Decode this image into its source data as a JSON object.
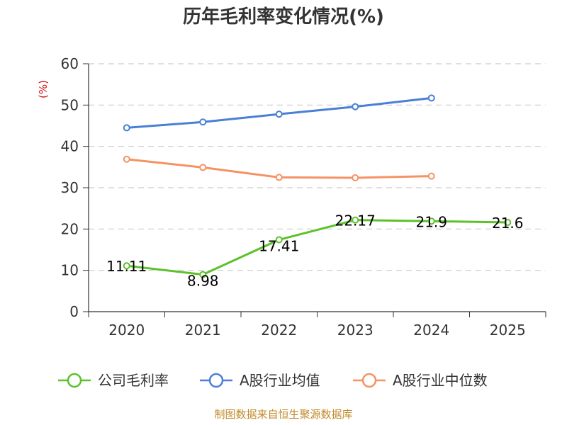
{
  "chart_data": {
    "type": "line",
    "title": "历年毛利率变化情况(%)",
    "y_unit": "(%)",
    "categories": [
      "2020",
      "2021",
      "2022",
      "2023",
      "2024",
      "2025"
    ],
    "ylim": [
      0,
      60
    ],
    "y_ticks": [
      "0",
      "10",
      "20",
      "30",
      "40",
      "50",
      "60"
    ],
    "grid": true,
    "legend_placement": "bottom",
    "series": [
      {
        "name": "公司毛利率",
        "color": "#5cc12a",
        "values": [
          11.11,
          8.98,
          17.41,
          22.17,
          21.9,
          21.6
        ],
        "labels": [
          "11.11",
          "8.98",
          "17.41",
          "22.17",
          "21.9",
          "21.6"
        ]
      },
      {
        "name": "A股行业均值",
        "color": "#4a7fd6",
        "values": [
          44.5,
          45.9,
          47.8,
          49.6,
          51.7,
          null
        ]
      },
      {
        "name": "A股行业中位数",
        "color": "#f59263",
        "values": [
          36.9,
          34.9,
          32.5,
          32.4,
          32.8,
          null
        ]
      }
    ]
  },
  "source": "制图数据来自恒生聚源数据库"
}
